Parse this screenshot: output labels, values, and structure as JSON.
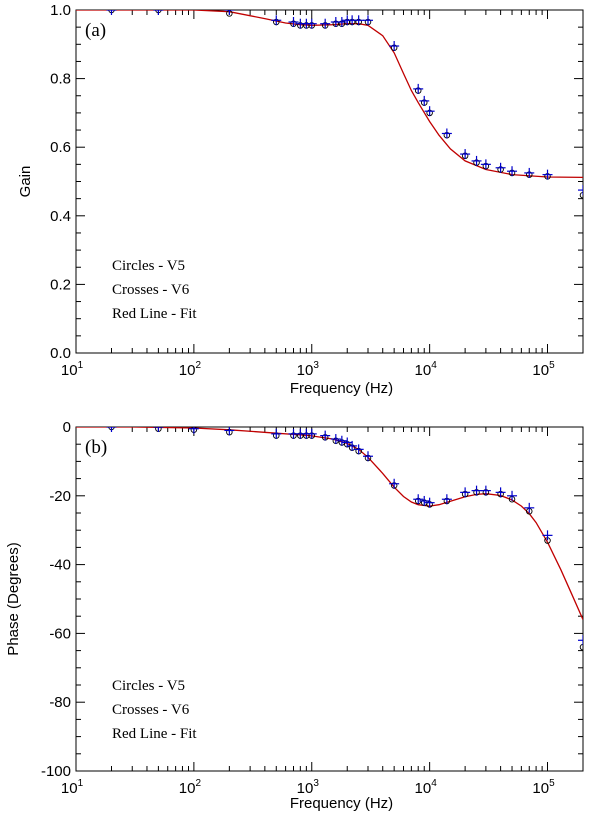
{
  "chart_data": [
    {
      "type": "scatter",
      "panel_label": "(a)",
      "xlabel": "Frequency (Hz)",
      "ylabel": "Gain",
      "xscale": "log",
      "xlim": [
        10,
        200000
      ],
      "ylim": [
        0.0,
        1.0
      ],
      "x_ticks": [
        {
          "base": "10",
          "exp": "1",
          "value": 10
        },
        {
          "base": "10",
          "exp": "2",
          "value": 100
        },
        {
          "base": "10",
          "exp": "3",
          "value": 1000
        },
        {
          "base": "10",
          "exp": "4",
          "value": 10000
        },
        {
          "base": "10",
          "exp": "5",
          "value": 100000
        }
      ],
      "y_ticks": [
        "0.0",
        "0.2",
        "0.4",
        "0.6",
        "0.8",
        "1.0"
      ],
      "legend": [
        "Circles - V5",
        "Crosses - V6",
        "Red Line - Fit"
      ],
      "legend_position": "bottom-left",
      "series": [
        {
          "name": "V5",
          "marker": "circle",
          "x": [
            20,
            50,
            200,
            500,
            700,
            800,
            900,
            1000,
            1300,
            1600,
            1800,
            2000,
            2200,
            2500,
            3000,
            5000,
            8000,
            9000,
            10000,
            14000,
            20000,
            25000,
            30000,
            40000,
            50000,
            70000,
            100000,
            200000
          ],
          "y": [
            1.0,
            1.0,
            0.99,
            0.965,
            0.96,
            0.955,
            0.955,
            0.955,
            0.955,
            0.96,
            0.96,
            0.965,
            0.965,
            0.965,
            0.965,
            0.89,
            0.765,
            0.73,
            0.7,
            0.635,
            0.575,
            0.555,
            0.545,
            0.535,
            0.525,
            0.52,
            0.515,
            0.46
          ]
        },
        {
          "name": "V6",
          "marker": "cross",
          "x": [
            20,
            50,
            200,
            500,
            700,
            800,
            900,
            1000,
            1300,
            1600,
            1800,
            2000,
            2200,
            2500,
            3000,
            5000,
            8000,
            9000,
            10000,
            14000,
            20000,
            25000,
            30000,
            40000,
            50000,
            70000,
            100000,
            200000
          ],
          "y": [
            1.0,
            1.0,
            1.0,
            0.97,
            0.965,
            0.96,
            0.96,
            0.96,
            0.96,
            0.965,
            0.965,
            0.97,
            0.97,
            0.97,
            0.97,
            0.895,
            0.77,
            0.735,
            0.705,
            0.64,
            0.58,
            0.56,
            0.55,
            0.54,
            0.53,
            0.525,
            0.52,
            0.475
          ]
        },
        {
          "name": "Fit",
          "marker": "line",
          "color": "#c00000",
          "x": [
            10,
            30,
            100,
            200,
            400,
            600,
            800,
            1000,
            1500,
            2000,
            2500,
            3000,
            4000,
            5000,
            6000,
            7000,
            8000,
            10000,
            12000,
            15000,
            20000,
            30000,
            50000,
            100000,
            200000
          ],
          "y": [
            1.0,
            1.0,
            1.0,
            0.995,
            0.975,
            0.962,
            0.957,
            0.955,
            0.957,
            0.96,
            0.96,
            0.955,
            0.925,
            0.875,
            0.815,
            0.765,
            0.73,
            0.675,
            0.635,
            0.595,
            0.56,
            0.535,
            0.52,
            0.513,
            0.512
          ]
        }
      ],
      "colors": {
        "markers": "#0000cc",
        "fit": "#c00000"
      }
    },
    {
      "type": "scatter",
      "panel_label": "(b)",
      "xlabel": "Frequency (Hz)",
      "ylabel": "Phase (Degrees)",
      "xscale": "log",
      "xlim": [
        10,
        200000
      ],
      "ylim": [
        -100,
        0
      ],
      "x_ticks": [
        {
          "base": "10",
          "exp": "1",
          "value": 10
        },
        {
          "base": "10",
          "exp": "2",
          "value": 100
        },
        {
          "base": "10",
          "exp": "3",
          "value": 1000
        },
        {
          "base": "10",
          "exp": "4",
          "value": 10000
        },
        {
          "base": "10",
          "exp": "5",
          "value": 100000
        }
      ],
      "y_ticks": [
        "-100",
        "-80",
        "-60",
        "-40",
        "-20",
        "0"
      ],
      "legend": [
        "Circles - V5",
        "Crosses - V6",
        "Red Line - Fit"
      ],
      "legend_position": "bottom-left",
      "series": [
        {
          "name": "V5",
          "marker": "circle",
          "x": [
            20,
            50,
            100,
            200,
            500,
            700,
            800,
            900,
            1000,
            1300,
            1600,
            1800,
            2000,
            2200,
            2500,
            3000,
            5000,
            8000,
            9000,
            10000,
            14000,
            20000,
            25000,
            30000,
            40000,
            50000,
            70000,
            100000,
            200000
          ],
          "y": [
            0,
            -0.5,
            -0.8,
            -1.5,
            -2.5,
            -2.5,
            -2.5,
            -2.5,
            -2.5,
            -3,
            -4,
            -4.5,
            -5,
            -6,
            -7,
            -9,
            -17,
            -21.5,
            -22,
            -22.5,
            -21.5,
            -19.5,
            -19,
            -19,
            -19.5,
            -21,
            -24.5,
            -33,
            -64
          ]
        },
        {
          "name": "V6",
          "marker": "cross",
          "x": [
            20,
            50,
            100,
            200,
            500,
            700,
            800,
            900,
            1000,
            1300,
            1600,
            1800,
            2000,
            2200,
            2500,
            3000,
            5000,
            8000,
            9000,
            10000,
            14000,
            20000,
            25000,
            30000,
            40000,
            50000,
            70000,
            100000,
            200000
          ],
          "y": [
            0,
            0,
            -0.5,
            -1,
            -2,
            -2,
            -2,
            -2,
            -2,
            -2.5,
            -3.5,
            -4,
            -4.5,
            -5.5,
            -6.5,
            -8.5,
            -16.5,
            -21,
            -21.5,
            -22,
            -21,
            -19,
            -18.5,
            -18.5,
            -19,
            -20,
            -23.5,
            -31.5,
            -62
          ]
        },
        {
          "name": "Fit",
          "marker": "line",
          "color": "#c00000",
          "x": [
            10,
            30,
            100,
            200,
            500,
            800,
            1000,
            1500,
            2000,
            2500,
            3000,
            4000,
            5000,
            6000,
            7000,
            8000,
            10000,
            12000,
            15000,
            20000,
            25000,
            30000,
            40000,
            50000,
            60000,
            70000,
            80000,
            100000,
            130000,
            160000,
            200000
          ],
          "y": [
            0,
            0,
            -0.3,
            -0.8,
            -1.8,
            -2.3,
            -2.6,
            -3.5,
            -4.8,
            -6.5,
            -8.8,
            -13.5,
            -17.5,
            -20.2,
            -21.8,
            -22.6,
            -23,
            -22.6,
            -21.6,
            -20.3,
            -19.6,
            -19.4,
            -19.9,
            -21.2,
            -23,
            -25.2,
            -27.8,
            -33.5,
            -41.5,
            -48.5,
            -56
          ]
        }
      ],
      "colors": {
        "markers": "#0000cc",
        "fit": "#c00000"
      }
    }
  ]
}
